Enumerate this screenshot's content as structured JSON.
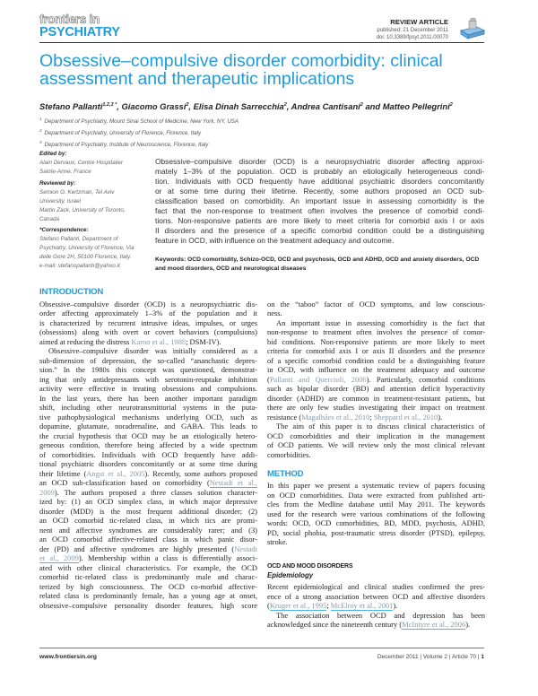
{
  "journal": {
    "logo_top": "frontiers in",
    "logo_bottom": "PSYCHIATRY",
    "brand_color": "#1f9bd8"
  },
  "meta": {
    "type": "REVIEW ARTICLE",
    "published": "published: 21 December 2011",
    "doi": "doi: 10.3389/fpsyt.2011.00070"
  },
  "title": [
    "Obsessive–compulsive disorder comorbidity: clinical",
    "assessment and therapeutic implications"
  ],
  "authors": [
    {
      "name": "Stefano Pallanti",
      "sup": "1,2,3 *",
      "sep": ", "
    },
    {
      "name": "Giacomo Grassi",
      "sup": "2",
      "sep": ", "
    },
    {
      "name": "Elisa Dinah Sarrecchia",
      "sup": "2",
      "sep": ", "
    },
    {
      "name": "Andrea Cantisani",
      "sup": "2",
      "sep": " and "
    },
    {
      "name": "Matteo Pellegrini",
      "sup": "2",
      "sep": ""
    }
  ],
  "affiliations": [
    {
      "num": "1",
      "text": "Department of Psychiatry, Mount Sinai School of Medicine, New York, NY, USA"
    },
    {
      "num": "2",
      "text": "Department of Psychiatry, University of Florence, Florence, Italy"
    },
    {
      "num": "3",
      "text": "Department of Psychiatry, Institute of Neuroscience, Florence, Italy"
    }
  ],
  "sidebar": [
    {
      "label": "Edited by:",
      "lines": [
        "Alain Dervaux, Centre Hospitalier",
        "Sainte-Anne, France"
      ]
    },
    {
      "label": "Reviewed by:",
      "lines": [
        "Semion G. Kertzman, Tel Aviv",
        "University, Israel",
        "Martin Zack, University of Toronto,",
        "Canada"
      ]
    },
    {
      "label": "*Correspondence:",
      "lines": [
        "Stefano Pallanti, Department of",
        "Psychiatry, University of Florence, Via",
        "delle Gore 2H, 50100 Florence, Italy.",
        "e-mail: stefanopallanti@yahoo.it"
      ]
    }
  ],
  "abstract": [
    "Obsessive–compulsive disorder (OCD) is a neuropsychiatric disorder affecting approxi-",
    "mately 1–3% of the population. OCD is probably an etiologically heterogeneous condi-",
    "tion. Individuals with OCD frequently have additional psychiatric disorders concomitantly",
    "or at some time during their lifetime. Recently, some authors proposed an OCD sub-",
    "classification based on comorbidity. An important issue in assessing comorbidity is the",
    "fact that the non-response to treatment often involves the presence of comorbid condi-",
    "tions. Non-responsive patients are more likely to meet criteria for comorbid axis I or axis",
    "II disorders and the presence of a specific comorbid condition could be a distinguishing",
    "feature in OCD, with influence on the treatment adequacy and outcome."
  ],
  "keywords": [
    "Keywords: OCD comorbidity, Schizo-OCD, OCD and psychosis, OCD and ADHD, OCD and anxiety disorders, OCD",
    "and mood disorders, OCD and neurological diseases"
  ],
  "left_column": [
    {
      "heading": "INTRODUCTION"
    },
    {
      "lines": [
        "Obsessive–compulsive disorder (OCD) is a neuropsychiatric dis-",
        "order affecting approximately 1–3% of the population and it",
        "is characterized by recurrent intrusive ideas, impulses, or urges",
        "(obsessions) along with overt or covert behaviors (compulsions)",
        [
          "aimed at reducing the distress ",
          {
            "cite": "Karno et al., 1988"
          },
          "; DSM-IV)."
        ]
      ]
    },
    {
      "indent": true,
      "lines": [
        "Obsessive–compulsive disorder was initially considered as a",
        "sub-dimension of depression, the so-called “ananchastic depres-",
        "sion.” In the 1980s this concept was questioned, demonstrat-",
        "ing that only antidepressants with serotonin-reuptake inhibition",
        "activity were effective in treating obsessions and compulsions.",
        "In the last years, there has been another important paradigm",
        "shift, including other neurotransmittorial systems in the puta-",
        "tive pathophysiological mechanisms underlying OCD, such as",
        "dopamine, glutamate, noradrenaline, and GABA. This leads to",
        "the crucial hypothesis that OCD may be an etiologically hetero-",
        "geneous condition, therefore being affected by a wide spectrum",
        "of comorbidities. Individuals with OCD frequently have addi-",
        "tional psychiatric disorders concomitantly or at some time during",
        [
          "their lifetime (",
          {
            "cite": "Angst et al., 2005"
          },
          "). Recently, some authors proposed"
        ],
        [
          "an OCD sub-classification based on comorbidity (",
          {
            "cite": "Nestadt et al.,"
          }
        ],
        [
          {
            "cite": "2009"
          },
          "). The authors proposed a three classes solution character-"
        ],
        "ized by: (1) an OCD simplex class, in which major depressive",
        "disorder (MDD) is the most frequent additional disorder; (2)",
        "an OCD comorbid tic-related class, in which tics are promi-",
        "nent and affective syndromes are considerably rarer; and (3)",
        "an OCD comorbid affective-related class in which panic disor-",
        [
          "der (PD) and affective syndromes are highly presented (",
          {
            "cite": "Nestadt"
          }
        ],
        [
          {
            "cite": "et al., 2009"
          },
          "). Membership within a class is differentially associ-"
        ],
        "ated with other clinical characteristics. For example, the OCD",
        "comorbid tic-related class is predominantly male and charac-",
        "terized by high consciousness. The OCD co-morbid affective-",
        "related class is predominantly female, has a young age at onset,",
        "obsessive–compulsive personality disorder features, high score"
      ],
      "continues": true
    }
  ],
  "right_column": [
    {
      "lines": [
        "on the “taboo” factor of OCD symptoms, and low conscious-",
        "ness."
      ]
    },
    {
      "indent": true,
      "lines": [
        "An important issue in assessing comorbidity is the fact that",
        "non-response to treatment often involves the presence of comor-",
        "bid conditions. Non-responsive patients are more likely to meet",
        "criteria for comorbid axis I or axis II disorders and the presence",
        "of a specific comorbid condition could be a distinguishing feature",
        "in OCD, with influence on the treatment adequacy and outcome",
        [
          "(",
          {
            "cite": "Pallanti and Quercioli, 2006"
          },
          "). Particularly, comorbid conditions"
        ],
        "such as bipolar disorder (BD) and attention deficit hyperactivity",
        "disorder (ADHD) are common in treatment-resistant patients, but",
        "there are only few studies investigating their impact on treatment",
        [
          "resistance (",
          {
            "cite": "Magalhães et al., 2010"
          },
          "; ",
          {
            "cite": "Sheppard et al., 2010"
          },
          ")."
        ]
      ]
    },
    {
      "indent": true,
      "lines": [
        "The aim of this paper is to discuss clinical characteristics of",
        "OCD comorbidities and their implication in the management",
        "of OCD patients. We will review only the most clinical relevant",
        "comorbidities."
      ]
    },
    {
      "heading": "METHOD",
      "gap": 10.5
    },
    {
      "lines": [
        "In this paper we present a systematic review of papers focusing",
        "on OCD comorbidities. Data were extracted from published arti-",
        "cles from the Medline database until May 2011. The keywords",
        "used for the research were various combinations of the following",
        "words: OCD, OCD comorbidities, BD, MDD, psychosis, ADHD,",
        "PD, social phobia, post-traumatic stress disorder (PTSD), epilepsy,",
        "stroke."
      ]
    },
    {
      "subheading": "OCD AND MOOD DISORDERS",
      "gap": 17.5
    },
    {
      "subsubheading": "Epidemiology"
    },
    {
      "lines": [
        "Recent epidemiological and clinical studies confirmed the pres-",
        "ence of a strong association between OCD and affective disorders",
        [
          "(",
          {
            "cite": "Kruger et al., 1995"
          },
          "; ",
          {
            "cite": "McElroy et al., 2001"
          },
          ")."
        ]
      ]
    },
    {
      "indent": true,
      "lines": [
        "The association between OCD and depression has been",
        [
          "acknowledged since the nineteenth century (",
          {
            "cite": "McIntyre et al., 2006"
          },
          ")."
        ]
      ]
    }
  ],
  "footer": {
    "website": "www.frontiersin.org",
    "issue": "December 2011 | Volume 2 | Article 70 | ",
    "page": "1"
  }
}
